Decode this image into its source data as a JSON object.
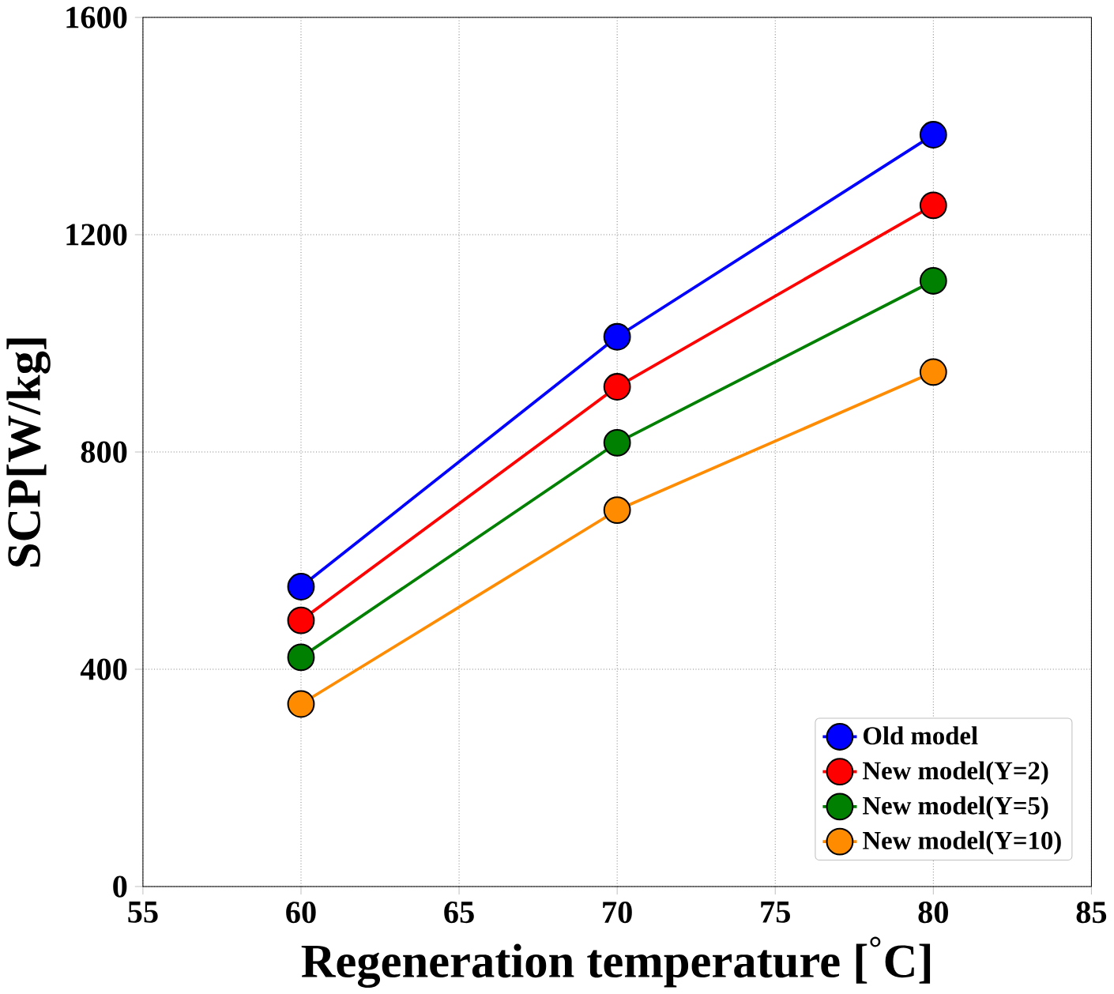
{
  "chart_data": {
    "type": "line",
    "xlabel": "Regeneration temperature [$^{°}$C]",
    "ylabel": "SCP[W/kg]",
    "x": [
      60,
      70,
      80
    ],
    "series": [
      {
        "name": "Old model",
        "color": "#0000ff",
        "values": [
          552,
          1012,
          1384
        ]
      },
      {
        "name": "New model(Y=2)",
        "color": "#ff0000",
        "values": [
          490,
          920,
          1254
        ]
      },
      {
        "name": "New model(Y=5)",
        "color": "#008000",
        "values": [
          422,
          817,
          1115
        ]
      },
      {
        "name": "New model(Y=10)",
        "color": "#ff8c00",
        "values": [
          336,
          693,
          947
        ]
      }
    ],
    "xlim": [
      55,
      85
    ],
    "xticks": [
      55,
      60,
      65,
      70,
      75,
      80,
      85
    ],
    "ylim": [
      0,
      1600
    ],
    "yticks": [
      0,
      400,
      800,
      1200,
      1600
    ],
    "grid": true,
    "legend": "bottom right",
    "marker": "circle",
    "line_style": "solid"
  }
}
